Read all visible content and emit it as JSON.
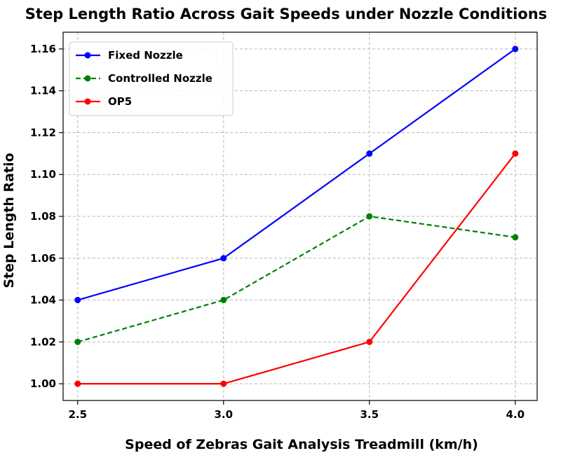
{
  "chart_data": {
    "type": "line",
    "title": "Step Length Ratio Across Gait Speeds under Nozzle Conditions",
    "xlabel": "Speed of Zebras Gait Analysis Treadmill (km/h)",
    "ylabel": "Step Length Ratio",
    "x": [
      2.5,
      3.0,
      3.5,
      4.0
    ],
    "x_tick_labels": [
      "2.5",
      "3.0",
      "3.5",
      "4.0"
    ],
    "y_ticks": [
      1.0,
      1.02,
      1.04,
      1.06,
      1.08,
      1.1,
      1.12,
      1.14,
      1.16
    ],
    "y_tick_labels": [
      "1.00",
      "1.02",
      "1.04",
      "1.06",
      "1.08",
      "1.10",
      "1.12",
      "1.14",
      "1.16"
    ],
    "xlim": [
      2.45,
      4.075
    ],
    "ylim": [
      0.992,
      1.168
    ],
    "grid": true,
    "legend_position": "top-left",
    "series": [
      {
        "name": "Fixed Nozzle",
        "values": [
          1.04,
          1.06,
          1.11,
          1.16
        ],
        "color": "#0000ff",
        "dashed": false
      },
      {
        "name": "Controlled Nozzle",
        "values": [
          1.02,
          1.04,
          1.08,
          1.07
        ],
        "color": "#008000",
        "dashed": true
      },
      {
        "name": "OP5",
        "values": [
          1.0,
          1.0,
          1.02,
          1.11
        ],
        "color": "#ff0000",
        "dashed": false
      }
    ]
  }
}
